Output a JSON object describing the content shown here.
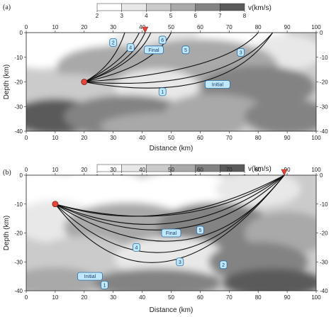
{
  "chart_data": [
    {
      "panel_label": "(a)",
      "type": "heatmap",
      "xlabel": "Distance (km)",
      "ylabel": "Depth (km)",
      "xlim": [
        0,
        100
      ],
      "ylim": [
        -40,
        0
      ],
      "x_ticks": [
        0,
        10,
        20,
        30,
        40,
        50,
        60,
        70,
        80,
        90,
        100
      ],
      "y_ticks": [
        0,
        -10,
        -20,
        -30,
        -40
      ],
      "colorbar": {
        "label": "v(km/s)",
        "ticks": [
          2,
          3,
          4,
          5,
          6,
          7,
          8
        ],
        "colors": [
          "#ffffff",
          "#e8e8e8",
          "#cbcbcb",
          "#a9a9a9",
          "#838383",
          "#5a5a5a"
        ]
      },
      "source": {
        "x": 20,
        "y": -20
      },
      "receiver": {
        "x": 41,
        "y": 0
      },
      "rays": [
        {
          "label": "Initial",
          "start": [
            20,
            -20
          ],
          "end": [
            85,
            0
          ],
          "control": [
            68,
            -24
          ],
          "label_at": [
            66,
            -21
          ]
        },
        {
          "label": "1",
          "start": [
            20,
            -20
          ],
          "end": [
            85,
            0
          ],
          "control": [
            68,
            -30
          ],
          "label_at": [
            47,
            -24
          ]
        },
        {
          "label": "2",
          "start": [
            20,
            -20
          ],
          "end": [
            39,
            0
          ],
          "control": [
            34,
            -12
          ],
          "label_at": [
            30,
            -4
          ]
        },
        {
          "label": "3",
          "start": [
            20,
            -20
          ],
          "end": [
            80,
            0
          ],
          "control": [
            68,
            -16
          ],
          "label_at": [
            74,
            -8
          ]
        },
        {
          "label": "4",
          "start": [
            20,
            -20
          ],
          "end": [
            43,
            0
          ],
          "control": [
            38,
            -13
          ],
          "label_at": [
            36,
            -6
          ]
        },
        {
          "label": "5",
          "start": [
            20,
            -20
          ],
          "end": [
            50,
            0
          ],
          "control": [
            44,
            -14
          ],
          "label_at": [
            55,
            -7
          ]
        },
        {
          "label": "6",
          "start": [
            20,
            -20
          ],
          "end": [
            34,
            0
          ],
          "control": [
            30,
            -14
          ],
          "label_at": [
            47,
            -3
          ]
        },
        {
          "label": "Final",
          "start": [
            20,
            -20
          ],
          "end": [
            41,
            0
          ],
          "control": [
            36,
            -13
          ],
          "label_at": [
            44,
            -7
          ]
        }
      ]
    },
    {
      "panel_label": "(b)",
      "type": "heatmap",
      "xlabel": "Distance (km)",
      "ylabel": "Depth (km)",
      "xlim": [
        0,
        100
      ],
      "ylim": [
        -40,
        0
      ],
      "x_ticks": [
        0,
        10,
        20,
        30,
        40,
        50,
        60,
        70,
        80,
        90,
        100
      ],
      "y_ticks": [
        0,
        -10,
        -20,
        -30,
        -40
      ],
      "colorbar": {
        "label": "v(km/s)",
        "ticks": [
          2,
          3,
          4,
          5,
          6,
          7,
          8
        ],
        "colors": [
          "#ffffff",
          "#e8e8e8",
          "#cbcbcb",
          "#a9a9a9",
          "#838383",
          "#5a5a5a"
        ]
      },
      "source": {
        "x": 10,
        "y": -10
      },
      "receiver": {
        "x": 89,
        "y": 0
      },
      "rays": [
        {
          "label": "Initial",
          "start": [
            10,
            -10
          ],
          "end": [
            89,
            0
          ],
          "control": [
            45,
            -55
          ],
          "label_at": [
            22,
            -35
          ]
        },
        {
          "label": "1",
          "start": [
            10,
            -10
          ],
          "end": [
            89,
            0
          ],
          "control": [
            50,
            -48
          ],
          "label_at": [
            27,
            -38
          ]
        },
        {
          "label": "2",
          "start": [
            10,
            -10
          ],
          "end": [
            89,
            0
          ],
          "control": [
            58,
            -40
          ],
          "label_at": [
            68,
            -31
          ]
        },
        {
          "label": "3",
          "start": [
            10,
            -10
          ],
          "end": [
            89,
            0
          ],
          "control": [
            55,
            -32
          ],
          "label_at": [
            53,
            -30
          ]
        },
        {
          "label": "4",
          "start": [
            10,
            -10
          ],
          "end": [
            89,
            0
          ],
          "control": [
            52,
            -28
          ],
          "label_at": [
            38,
            -25
          ]
        },
        {
          "label": "5",
          "start": [
            10,
            -10
          ],
          "end": [
            89,
            0
          ],
          "control": [
            55,
            -22
          ],
          "label_at": [
            60,
            -19
          ]
        },
        {
          "label": "Final",
          "start": [
            10,
            -10
          ],
          "end": [
            89,
            0
          ],
          "control": [
            48,
            -22
          ],
          "label_at": [
            50,
            -20
          ]
        }
      ]
    }
  ]
}
